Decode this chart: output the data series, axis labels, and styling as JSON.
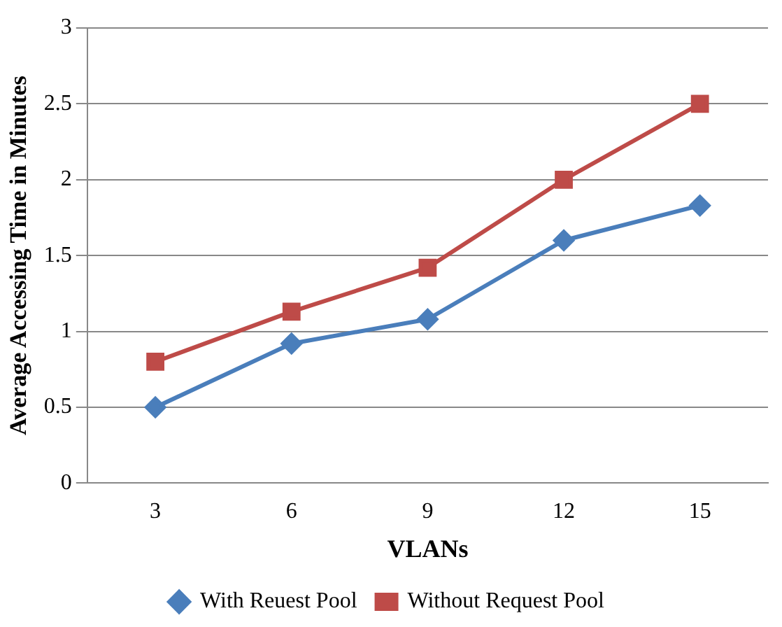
{
  "chart_data": {
    "type": "line",
    "xlabel": "VLANs",
    "ylabel": "Average Accessing Time in Minutes",
    "categories": [
      "3",
      "6",
      "9",
      "12",
      "15"
    ],
    "series": [
      {
        "name": "With Reuest Pool",
        "color": "#4a7ebb",
        "marker": "diamond",
        "values": [
          0.5,
          0.92,
          1.08,
          1.6,
          1.83
        ]
      },
      {
        "name": "Without Request Pool",
        "color": "#be4b48",
        "marker": "square",
        "values": [
          0.8,
          1.13,
          1.42,
          2.0,
          2.5
        ]
      }
    ],
    "ylim": [
      0,
      3
    ],
    "yticks": [
      0,
      0.5,
      1,
      1.5,
      2,
      2.5,
      3
    ],
    "grid": "y",
    "legend": "bottom",
    "line_style": "solid"
  }
}
